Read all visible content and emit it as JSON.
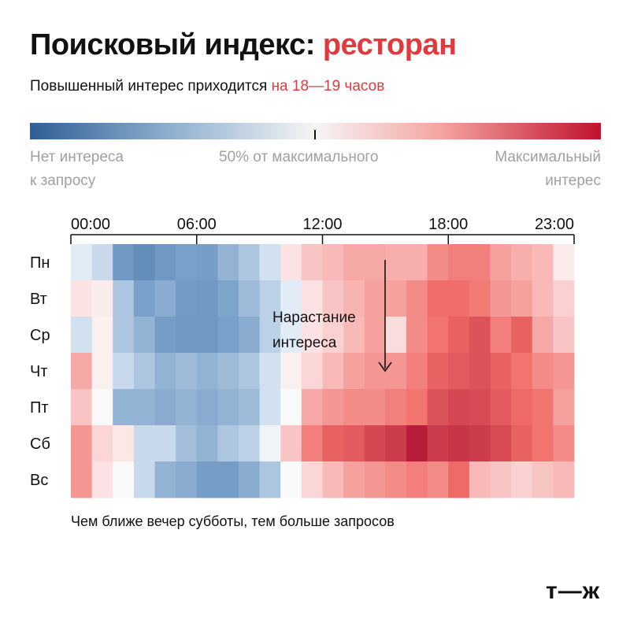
{
  "header": {
    "title_main": "Поисковый индекс: ",
    "title_accent": "ресторан",
    "subtitle_main": "Повышенный интерес приходится ",
    "subtitle_accent": "на 18—19 часов"
  },
  "legend": {
    "low_line1": "Нет интереса",
    "low_line2": "к запросу",
    "mid": "50% от максимального",
    "high_line1": "Максимальный",
    "high_line2": "интерес"
  },
  "footnote": "Чем ближе вечер субботы, тем больше запросов",
  "logo": "т—ж",
  "colors": {
    "accent": "#e03a3e",
    "scale_low": "#2f5f95",
    "scale_mid": "#f5f5f5",
    "scale_high": "#c0122e"
  },
  "chart_data": {
    "type": "heatmap",
    "x_tick_labels": [
      "00:00",
      "06:00",
      "12:00",
      "18:00",
      "23:00"
    ],
    "x_tick_hours": [
      0,
      6,
      12,
      18,
      23
    ],
    "hours": [
      0,
      1,
      2,
      3,
      4,
      5,
      6,
      7,
      8,
      9,
      10,
      11,
      12,
      13,
      14,
      15,
      16,
      17,
      18,
      19,
      20,
      21,
      22,
      23
    ],
    "days": [
      "Пн",
      "Вт",
      "Ср",
      "Чт",
      "Пт",
      "Сб",
      "Вс"
    ],
    "value_scale": "percent of maximum",
    "values": [
      [
        45,
        40,
        22,
        18,
        22,
        25,
        24,
        30,
        35,
        42,
        55,
        60,
        62,
        65,
        65,
        64,
        64,
        70,
        72,
        72,
        66,
        64,
        62,
        53
      ],
      [
        55,
        53,
        35,
        25,
        28,
        23,
        22,
        26,
        32,
        38,
        45,
        55,
        60,
        63,
        66,
        66,
        70,
        75,
        75,
        73,
        68,
        66,
        62,
        58
      ],
      [
        42,
        52,
        35,
        30,
        24,
        22,
        22,
        25,
        28,
        38,
        45,
        55,
        58,
        62,
        66,
        56,
        70,
        74,
        78,
        82,
        72,
        78,
        65,
        60
      ],
      [
        65,
        52,
        40,
        35,
        30,
        32,
        30,
        32,
        35,
        42,
        52,
        57,
        62,
        66,
        68,
        68,
        72,
        78,
        80,
        82,
        78,
        74,
        70,
        68
      ],
      [
        60,
        50,
        30,
        30,
        28,
        30,
        28,
        30,
        32,
        42,
        50,
        65,
        68,
        70,
        70,
        72,
        74,
        82,
        85,
        84,
        80,
        76,
        74,
        66
      ],
      [
        68,
        57,
        54,
        40,
        40,
        33,
        30,
        35,
        38,
        48,
        60,
        72,
        78,
        80,
        85,
        88,
        96,
        88,
        90,
        88,
        84,
        78,
        74,
        70
      ],
      [
        68,
        55,
        50,
        40,
        30,
        28,
        24,
        24,
        28,
        35,
        50,
        57,
        62,
        66,
        68,
        70,
        72,
        70,
        76,
        62,
        60,
        58,
        60,
        62
      ]
    ],
    "annotation": "Нарастание интереса",
    "annotation_line1": "Нарастание",
    "annotation_line2": "интереса"
  }
}
